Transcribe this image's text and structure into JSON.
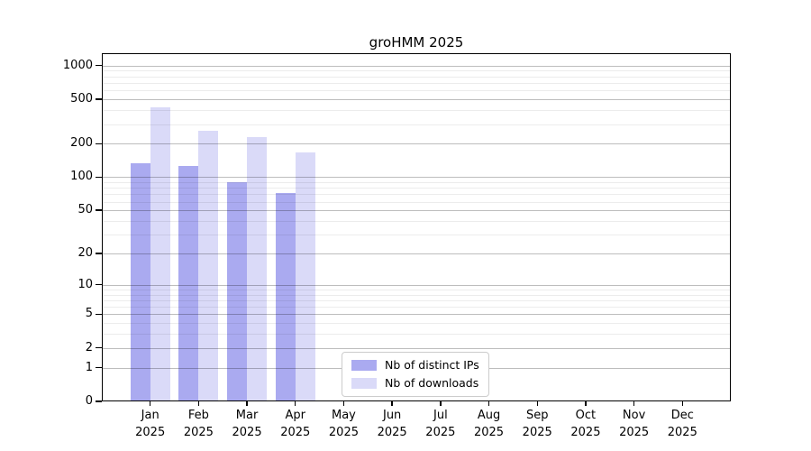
{
  "title": "groHMM 2025",
  "chart_data": {
    "type": "bar",
    "title": "groHMM 2025",
    "x_year": "2025",
    "categories": [
      "Jan",
      "Feb",
      "Mar",
      "Apr",
      "May",
      "Jun",
      "Jul",
      "Aug",
      "Sep",
      "Oct",
      "Nov",
      "Dec"
    ],
    "series": [
      {
        "name": "Nb of distinct IPs",
        "color": "#aaaaf0",
        "values": [
          133,
          127,
          90,
          72,
          null,
          null,
          null,
          null,
          null,
          null,
          null,
          null
        ]
      },
      {
        "name": "Nb of downloads",
        "color": "#dadaf8",
        "values": [
          425,
          263,
          230,
          168,
          null,
          null,
          null,
          null,
          null,
          null,
          null,
          null
        ]
      }
    ],
    "y_scale": "log1p",
    "y_ticks": [
      0,
      1,
      2,
      5,
      10,
      20,
      50,
      100,
      200,
      500,
      1000
    ],
    "y_minor_ticks": [
      3,
      4,
      6,
      7,
      8,
      9,
      30,
      40,
      60,
      70,
      80,
      90,
      300,
      400,
      600,
      700,
      800,
      900
    ],
    "ylim": [
      0,
      1290
    ],
    "grid": "horizontal major+minor gray lines",
    "legend_position": "lower center",
    "bar_layout": "pair of touching bars centered on each month tick"
  }
}
